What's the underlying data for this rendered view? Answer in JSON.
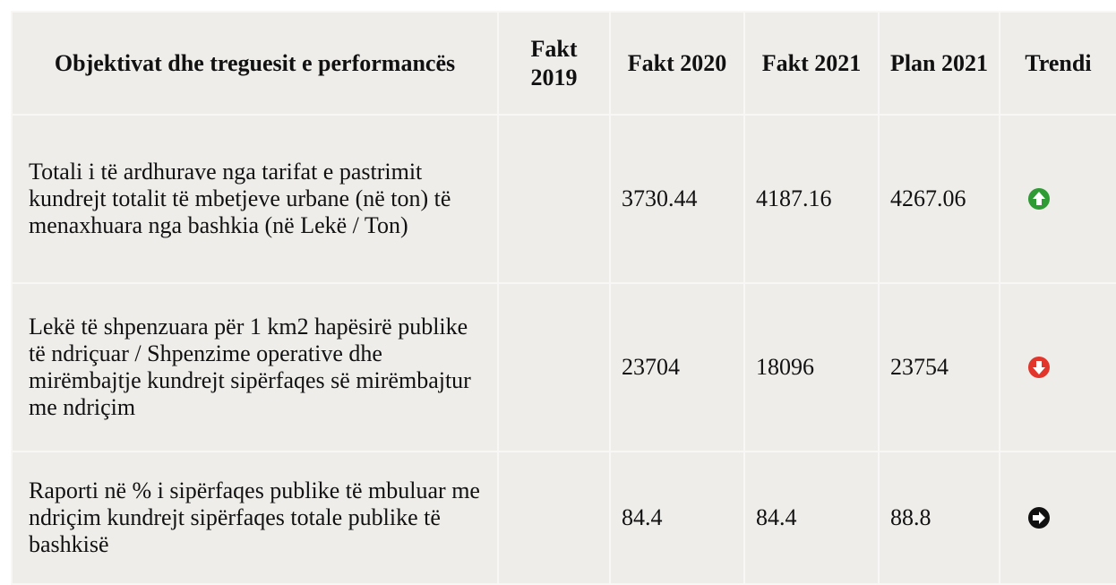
{
  "table": {
    "header": [
      "Objektivat dhe treguesit e performancës",
      "Fakt 2019",
      "Fakt 2020",
      "Fakt 2021",
      "Plan 2021",
      "Trendi"
    ],
    "rows": [
      {
        "indicator": "Totali i të ardhurave nga tarifat e pastrimit kundrejt totalit të mbetjeve urbane (në ton) të menaxhuara nga bashkia (në Lekë / Ton)",
        "fakt_2020": "3730.44",
        "fakt_2021": "4187.16",
        "plan_2021": "4267.06"
      },
      {
        "indicator": "Lekë të shpenzuara për 1 km2 hapësirë publike të ndriçuar / Shpenzime operative dhe mirëmbajtje kundrejt sipërfaqes së mirëmbajtur me ndriçim",
        "fakt_2020": "23704",
        "fakt_2021": "18096",
        "plan_2021": "23754"
      },
      {
        "indicator": "Raporti në % i sipërfaqes publike të mbuluar me ndriçim kundrejt sipërfaqes totale publike të bashkisë",
        "fakt_2020": "84.4",
        "fakt_2021": "84.4",
        "plan_2021": "88.8"
      }
    ]
  }
}
